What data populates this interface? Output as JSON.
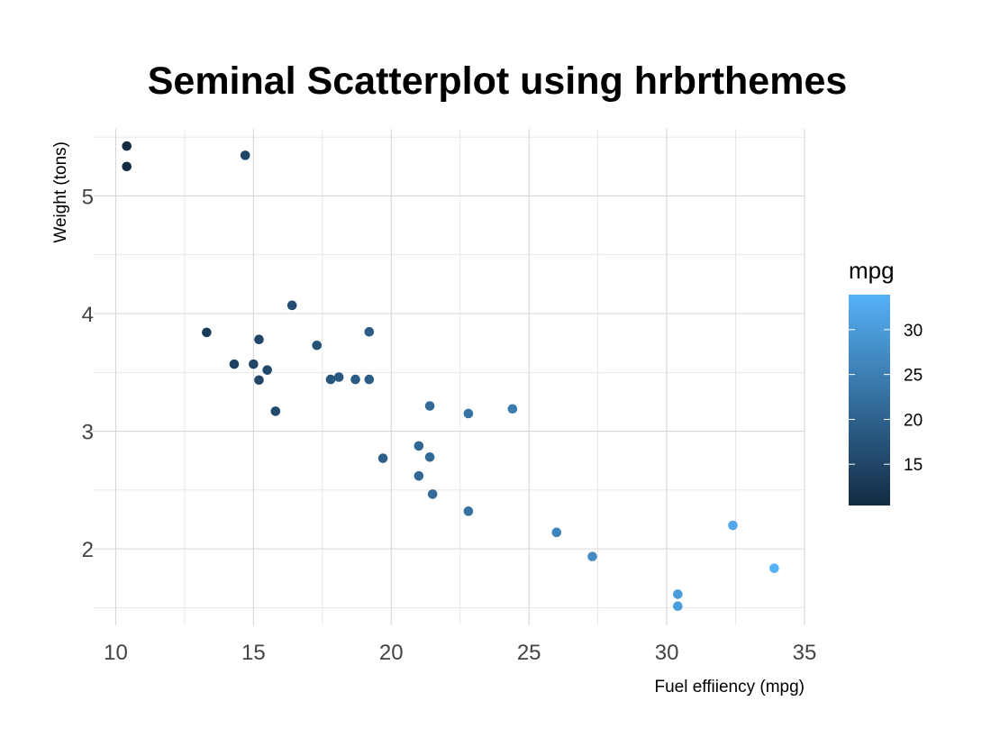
{
  "chart_data": {
    "type": "scatter",
    "title": "Seminal Scatterplot using hrbrthemes",
    "xlabel": "Fuel effiiency (mpg)",
    "ylabel": "Weight (tons)",
    "xlim": [
      9.2,
      35.0
    ],
    "ylim": [
      1.35,
      5.57
    ],
    "x_ticks": [
      10,
      15,
      20,
      25,
      30,
      35
    ],
    "y_ticks": [
      2,
      3,
      4,
      5
    ],
    "grid": true,
    "legend": {
      "title": "mpg",
      "type": "colorbar",
      "position": "right",
      "range": [
        10.4,
        33.9
      ],
      "ticks": [
        15,
        20,
        25,
        30
      ],
      "color_low": "#132B43",
      "color_high": "#56B1F7"
    },
    "points": [
      {
        "x": 21.0,
        "y": 2.62
      },
      {
        "x": 21.0,
        "y": 2.875
      },
      {
        "x": 22.8,
        "y": 2.32
      },
      {
        "x": 21.4,
        "y": 3.215
      },
      {
        "x": 18.7,
        "y": 3.44
      },
      {
        "x": 18.1,
        "y": 3.46
      },
      {
        "x": 14.3,
        "y": 3.57
      },
      {
        "x": 24.4,
        "y": 3.19
      },
      {
        "x": 22.8,
        "y": 3.15
      },
      {
        "x": 19.2,
        "y": 3.44
      },
      {
        "x": 17.8,
        "y": 3.44
      },
      {
        "x": 16.4,
        "y": 4.07
      },
      {
        "x": 17.3,
        "y": 3.73
      },
      {
        "x": 15.2,
        "y": 3.78
      },
      {
        "x": 10.4,
        "y": 5.25
      },
      {
        "x": 10.4,
        "y": 5.424
      },
      {
        "x": 14.7,
        "y": 5.345
      },
      {
        "x": 32.4,
        "y": 2.2
      },
      {
        "x": 30.4,
        "y": 1.615
      },
      {
        "x": 33.9,
        "y": 1.835
      },
      {
        "x": 21.5,
        "y": 2.465
      },
      {
        "x": 15.5,
        "y": 3.52
      },
      {
        "x": 15.2,
        "y": 3.435
      },
      {
        "x": 13.3,
        "y": 3.84
      },
      {
        "x": 19.2,
        "y": 3.845
      },
      {
        "x": 27.3,
        "y": 1.935
      },
      {
        "x": 26.0,
        "y": 2.14
      },
      {
        "x": 30.4,
        "y": 1.513
      },
      {
        "x": 15.8,
        "y": 3.17
      },
      {
        "x": 19.7,
        "y": 2.77
      },
      {
        "x": 15.0,
        "y": 3.57
      },
      {
        "x": 21.4,
        "y": 2.78
      }
    ]
  }
}
